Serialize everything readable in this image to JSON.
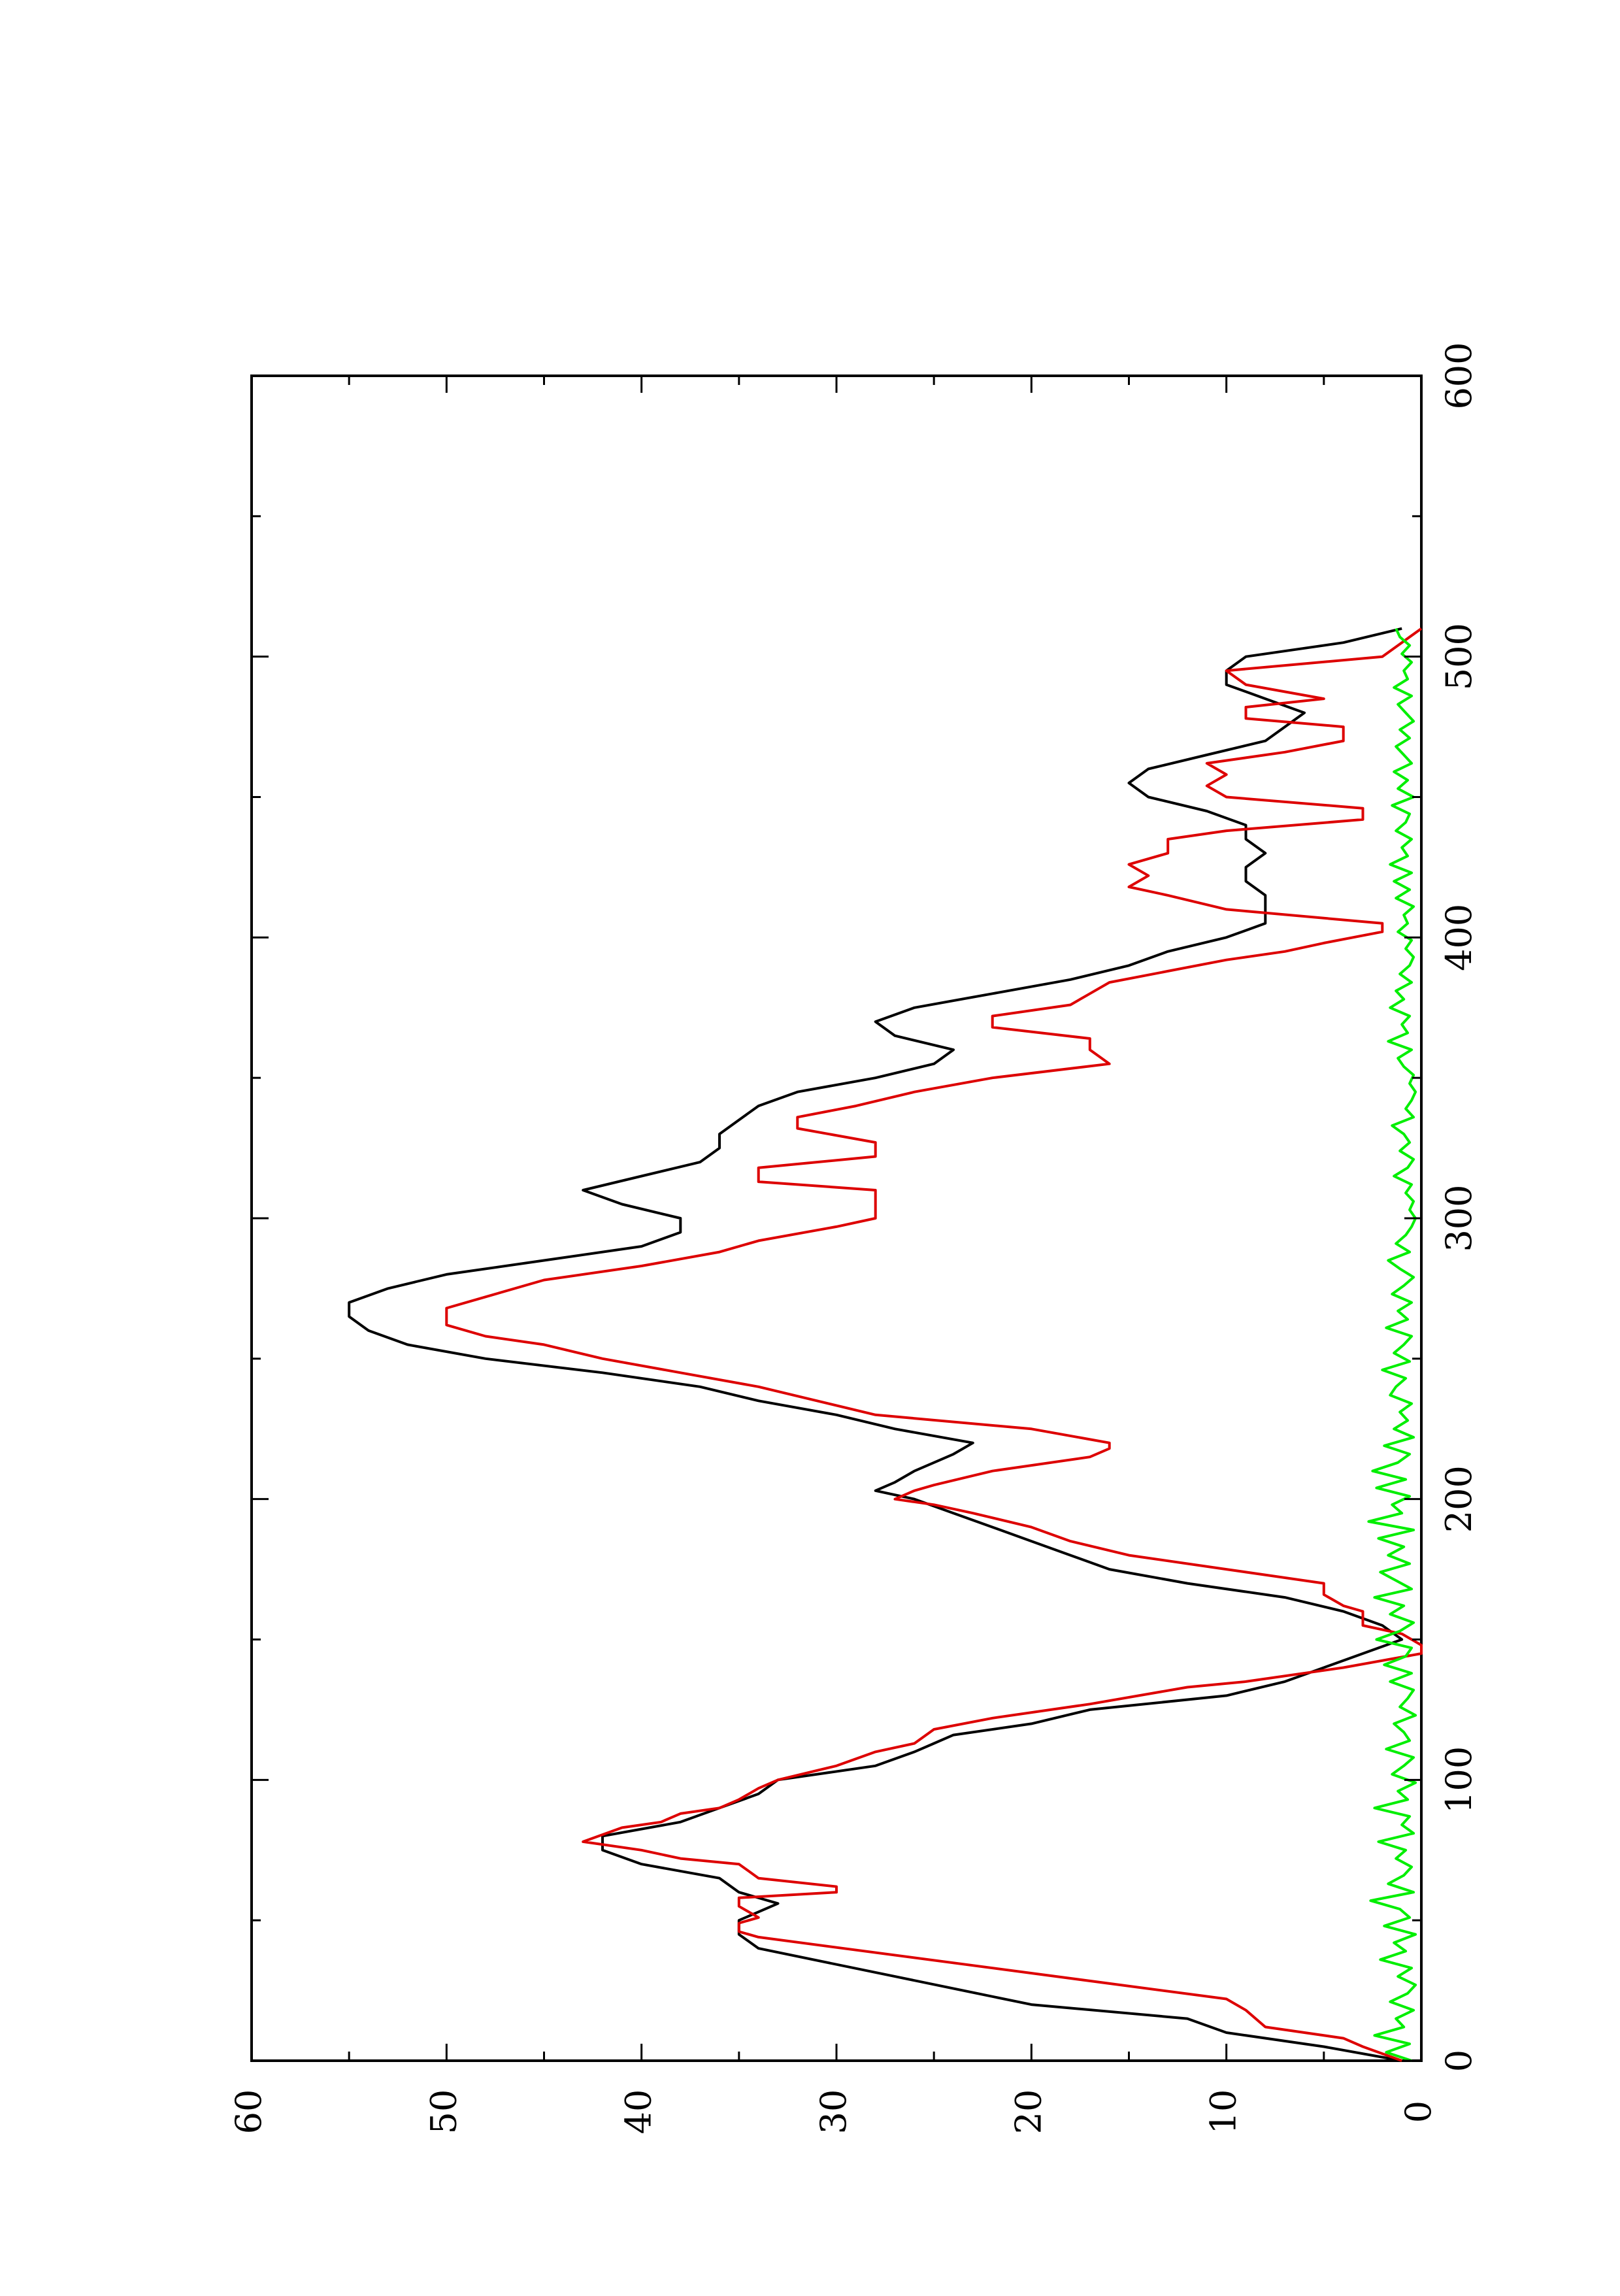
{
  "chart_data": {
    "type": "line",
    "orientation": "rotated-90-ccw",
    "title": "",
    "xlabel": "",
    "ylabel": "",
    "xlim": [
      0,
      600
    ],
    "ylim": [
      0,
      60
    ],
    "x_ticks": [
      0,
      100,
      200,
      300,
      400,
      500,
      600
    ],
    "y_ticks": [
      0,
      10,
      20,
      30,
      40,
      50,
      60
    ],
    "x_tick_labels": [
      "0",
      "100",
      "200",
      "300",
      "400",
      "500",
      "600"
    ],
    "y_tick_labels": [
      "0",
      "10",
      "20",
      "30",
      "40",
      "50",
      "60"
    ],
    "grid": false,
    "legend": "none",
    "series": [
      {
        "color": "#000000",
        "x": [
          0,
          5,
          10,
          15,
          20,
          30,
          40,
          45,
          50,
          53,
          56,
          60,
          65,
          70,
          75,
          80,
          85,
          90,
          95,
          100,
          105,
          110,
          113,
          116,
          120,
          125,
          130,
          135,
          140,
          145,
          150,
          155,
          160,
          165,
          170,
          175,
          180,
          185,
          190,
          195,
          200,
          203,
          206,
          210,
          213,
          216,
          220,
          225,
          230,
          235,
          240,
          245,
          250,
          255,
          260,
          265,
          270,
          275,
          280,
          285,
          290,
          295,
          300,
          305,
          310,
          315,
          320,
          325,
          330,
          335,
          340,
          345,
          350,
          355,
          360,
          365,
          370,
          375,
          380,
          385,
          390,
          395,
          400,
          405,
          410,
          415,
          420,
          425,
          430,
          435,
          440,
          445,
          450,
          455,
          460,
          465,
          470,
          475,
          480,
          485,
          490,
          495,
          500,
          505,
          510
        ],
        "y": [
          1,
          5,
          10,
          12,
          20,
          27,
          34,
          35,
          35,
          34,
          33,
          35,
          36,
          40,
          42,
          42,
          38,
          36,
          34,
          33,
          28,
          26,
          25,
          24,
          20,
          17,
          10,
          7,
          5,
          3,
          1,
          2,
          4,
          7,
          12,
          16,
          18,
          20,
          22,
          24,
          26,
          28,
          27,
          26,
          25,
          24,
          23,
          27,
          30,
          34,
          37,
          42,
          48,
          52,
          54,
          55,
          55,
          53,
          50,
          45,
          40,
          38,
          38,
          41,
          43,
          40,
          37,
          36,
          36,
          35,
          34,
          32,
          28,
          25,
          24,
          27,
          28,
          26,
          22,
          18,
          15,
          13,
          10,
          8,
          8,
          8,
          9,
          9,
          8,
          9,
          9,
          11,
          14,
          15,
          14,
          11,
          8,
          7,
          6,
          8,
          10,
          10,
          9,
          4,
          1
        ]
      },
      {
        "color": "#dd0000",
        "x": [
          0,
          5,
          8,
          12,
          18,
          22,
          44,
          46,
          49,
          51,
          55,
          58,
          60,
          62,
          65,
          70,
          72,
          75,
          78,
          83,
          85,
          88,
          90,
          93,
          97,
          100,
          105,
          110,
          113,
          118,
          122,
          127,
          133,
          135,
          140,
          145,
          148,
          152,
          155,
          160,
          162,
          166,
          170,
          175,
          180,
          185,
          190,
          195,
          198,
          200,
          203,
          205,
          210,
          215,
          218,
          220,
          225,
          230,
          235,
          240,
          245,
          250,
          255,
          258,
          262,
          268,
          272,
          278,
          283,
          288,
          292,
          297,
          300,
          305,
          310,
          313,
          318,
          322,
          327,
          332,
          336,
          340,
          345,
          350,
          355,
          360,
          364,
          368,
          372,
          376,
          380,
          384,
          388,
          392,
          395,
          398,
          402,
          405,
          410,
          415,
          418,
          422,
          426,
          430,
          435,
          438,
          442,
          446,
          450,
          454,
          458,
          462,
          466,
          470,
          475,
          478,
          482,
          485,
          490,
          495,
          500,
          505,
          510
        ],
        "y": [
          1,
          3,
          4,
          8,
          9,
          10,
          34,
          35,
          35,
          34,
          35,
          35,
          30,
          30,
          34,
          35,
          38,
          40,
          43,
          41,
          39,
          38,
          36,
          35,
          34,
          33,
          30,
          28,
          26,
          25,
          22,
          17,
          12,
          9,
          4,
          0,
          0,
          1,
          3,
          3,
          4,
          5,
          5,
          10,
          15,
          18,
          20,
          23,
          25,
          27,
          26,
          25,
          22,
          17,
          16,
          16,
          20,
          28,
          31,
          34,
          38,
          42,
          45,
          48,
          50,
          50,
          48,
          45,
          40,
          36,
          34,
          30,
          28,
          28,
          28,
          34,
          34,
          28,
          28,
          32,
          32,
          29,
          26,
          22,
          16,
          17,
          17,
          22,
          22,
          18,
          17,
          16,
          13,
          10,
          7,
          5,
          2,
          2,
          10,
          13,
          15,
          14,
          15,
          13,
          13,
          10,
          3,
          3,
          10,
          11,
          10,
          11,
          7,
          4,
          4,
          9,
          9,
          5,
          9,
          10,
          2,
          1,
          0
        ]
      },
      {
        "color": "#00ee00",
        "x": [
          0,
          3,
          6,
          9,
          12,
          15,
          18,
          21,
          24,
          27,
          30,
          33,
          36,
          39,
          42,
          45,
          48,
          51,
          54,
          57,
          60,
          63,
          66,
          69,
          72,
          75,
          78,
          81,
          84,
          87,
          90,
          93,
          96,
          99,
          102,
          105,
          108,
          111,
          114,
          117,
          120,
          123,
          126,
          129,
          132,
          135,
          138,
          141,
          144,
          147,
          150,
          153,
          156,
          159,
          162,
          165,
          168,
          171,
          174,
          177,
          180,
          183,
          186,
          189,
          192,
          195,
          198,
          201,
          204,
          207,
          210,
          213,
          216,
          219,
          222,
          225,
          228,
          231,
          234,
          237,
          240,
          243,
          246,
          249,
          252,
          255,
          258,
          261,
          264,
          267,
          270,
          273,
          276,
          279,
          282,
          285,
          288,
          291,
          294,
          297,
          300,
          303,
          306,
          309,
          312,
          315,
          318,
          321,
          324,
          327,
          330,
          333,
          336,
          339,
          342,
          345,
          348,
          351,
          354,
          357,
          360,
          363,
          366,
          369,
          372,
          375,
          378,
          381,
          384,
          387,
          390,
          393,
          396,
          399,
          402,
          405,
          408,
          411,
          414,
          417,
          420,
          423,
          426,
          429,
          432,
          435,
          438,
          441,
          444,
          447,
          450,
          453,
          456,
          459,
          462,
          465,
          468,
          471,
          474,
          477,
          480,
          483,
          486,
          489,
          492,
          495,
          498,
          501,
          504,
          507,
          510
        ],
        "y": [
          0.5,
          1.8,
          0.6,
          2.4,
          0.9,
          1.3,
          0.4,
          1.6,
          0.7,
          0.3,
          1.2,
          0.5,
          2.1,
          0.8,
          1.4,
          0.3,
          1.9,
          0.6,
          1.1,
          2.6,
          0.4,
          1.7,
          0.9,
          0.5,
          1.3,
          0.8,
          2.2,
          0.4,
          1.0,
          0.6,
          2.4,
          0.7,
          1.2,
          0.3,
          1.5,
          0.9,
          0.4,
          1.8,
          0.6,
          0.9,
          1.4,
          0.3,
          1.1,
          0.7,
          0.4,
          1.6,
          0.5,
          1.9,
          0.8,
          0.5,
          2.3,
          1.1,
          0.4,
          1.6,
          0.9,
          2.4,
          0.5,
          1.3,
          2.1,
          0.6,
          1.7,
          0.9,
          2.2,
          0.4,
          2.7,
          1.0,
          1.5,
          0.6,
          2.3,
          0.8,
          2.5,
          1.2,
          0.6,
          1.9,
          0.4,
          1.4,
          0.7,
          1.1,
          0.5,
          1.6,
          1.3,
          0.8,
          2.0,
          0.6,
          1.4,
          0.9,
          0.5,
          1.8,
          0.7,
          1.2,
          0.5,
          1.5,
          0.9,
          0.4,
          1.1,
          1.7,
          0.6,
          1.3,
          0.8,
          0.5,
          0.3,
          0.6,
          0.4,
          0.8,
          0.5,
          1.4,
          0.7,
          0.4,
          1.1,
          0.6,
          0.9,
          1.5,
          0.4,
          0.8,
          0.5,
          0.3,
          0.6,
          0.4,
          0.9,
          1.2,
          0.5,
          1.7,
          0.7,
          1.0,
          0.6,
          1.6,
          0.9,
          1.3,
          0.5,
          1.1,
          0.6,
          0.4,
          0.8,
          0.5,
          1.2,
          0.7,
          0.9,
          0.4,
          1.3,
          0.6,
          1.4,
          0.5,
          1.6,
          0.7,
          1.0,
          0.5,
          1.3,
          0.8,
          0.6,
          1.5,
          0.4,
          1.2,
          0.7,
          1.4,
          0.5,
          0.9,
          1.3,
          0.6,
          1.1,
          0.4,
          0.8,
          1.2,
          0.5,
          1.4,
          0.7,
          0.9,
          0.5,
          1.0,
          0.6,
          1.1,
          1.3
        ]
      }
    ]
  }
}
